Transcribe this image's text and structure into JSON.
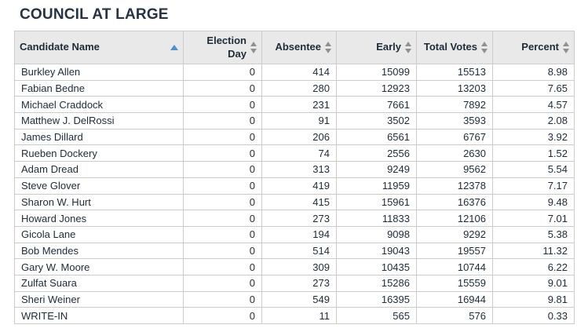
{
  "title": "COUNCIL AT LARGE",
  "colors": {
    "header_background": "#e9e9e9",
    "border": "#cbcbcb",
    "text": "#1e2b3a",
    "active_sort_arrow": "#4a90d2",
    "inactive_sort_arrow": "#909090"
  },
  "table": {
    "columns": [
      {
        "label": "Candidate Name",
        "sort_state": "ascending",
        "icon": "sort-ascending-icon"
      },
      {
        "label": "Election Day",
        "sort_state": "none",
        "icon": "sort-both-icon"
      },
      {
        "label": "Absentee",
        "sort_state": "none",
        "icon": "sort-both-icon"
      },
      {
        "label": "Early",
        "sort_state": "none",
        "icon": "sort-both-icon"
      },
      {
        "label": "Total Votes",
        "sort_state": "none",
        "icon": "sort-both-icon"
      },
      {
        "label": "Percent",
        "sort_state": "none",
        "icon": "sort-both-icon"
      }
    ],
    "rows": [
      [
        "Burkley Allen",
        "0",
        "414",
        "15099",
        "15513",
        "8.98"
      ],
      [
        "Fabian Bedne",
        "0",
        "280",
        "12923",
        "13203",
        "7.65"
      ],
      [
        "Michael Craddock",
        "0",
        "231",
        "7661",
        "7892",
        "4.57"
      ],
      [
        "Matthew J. DelRossi",
        "0",
        "91",
        "3502",
        "3593",
        "2.08"
      ],
      [
        "James Dillard",
        "0",
        "206",
        "6561",
        "6767",
        "3.92"
      ],
      [
        "Rueben Dockery",
        "0",
        "74",
        "2556",
        "2630",
        "1.52"
      ],
      [
        "Adam Dread",
        "0",
        "313",
        "9249",
        "9562",
        "5.54"
      ],
      [
        "Steve Glover",
        "0",
        "419",
        "11959",
        "12378",
        "7.17"
      ],
      [
        "Sharon W. Hurt",
        "0",
        "415",
        "15961",
        "16376",
        "9.48"
      ],
      [
        "Howard Jones",
        "0",
        "273",
        "11833",
        "12106",
        "7.01"
      ],
      [
        "Gicola Lane",
        "0",
        "194",
        "9098",
        "9292",
        "5.38"
      ],
      [
        "Bob Mendes",
        "0",
        "514",
        "19043",
        "19557",
        "11.32"
      ],
      [
        "Gary W. Moore",
        "0",
        "309",
        "10435",
        "10744",
        "6.22"
      ],
      [
        "Zulfat Suara",
        "0",
        "273",
        "15286",
        "15559",
        "9.01"
      ],
      [
        "Sheri Weiner",
        "0",
        "549",
        "16395",
        "16944",
        "9.81"
      ],
      [
        "WRITE-IN",
        "0",
        "11",
        "565",
        "576",
        "0.33"
      ]
    ]
  }
}
